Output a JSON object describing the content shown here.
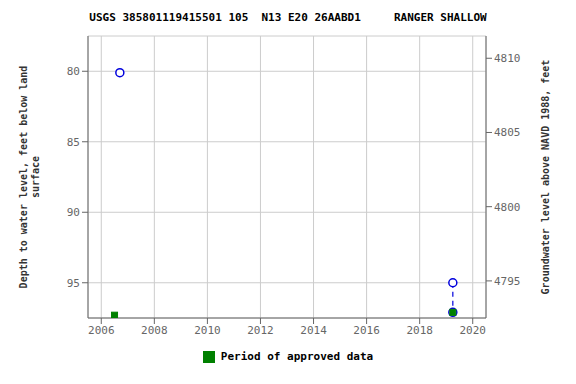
{
  "chart_data": {
    "type": "scatter",
    "title": "USGS 385801119415501 105  N13 E20 26AABD1     RANGER SHALLOW",
    "y_label": "Depth to water level, feet below land\n surface",
    "y2_label": "Groundwater level above NAVD 1988, feet",
    "xlim": [
      2005.5,
      2020.5
    ],
    "xticks": [
      2006,
      2008,
      2010,
      2012,
      2014,
      2016,
      2018,
      2020
    ],
    "ylim": [
      97.5,
      77.5
    ],
    "yticks": [
      80,
      85,
      90,
      95
    ],
    "y2lim": [
      4792.5,
      4811.5
    ],
    "y2ticks": [
      4795,
      4800,
      4805,
      4810
    ],
    "grid": true,
    "legend": "bottom",
    "series": [
      {
        "type": "line",
        "line_style": "dashed",
        "color": "#0000dd",
        "x": [
          2019.25,
          2019.25
        ],
        "values": [
          95.0,
          97.1
        ]
      },
      {
        "type": "scatter",
        "marker": "circle_open",
        "color": "#0000dd",
        "x": [
          2006.7,
          2019.25,
          2019.25
        ],
        "values": [
          80.1,
          95.0,
          97.1
        ]
      },
      {
        "type": "scatter",
        "name": "Period of approved data",
        "marker": "square",
        "color": "#008000",
        "x": [
          2006.5,
          2019.25
        ],
        "values": [
          97.3,
          97.1
        ]
      }
    ]
  }
}
